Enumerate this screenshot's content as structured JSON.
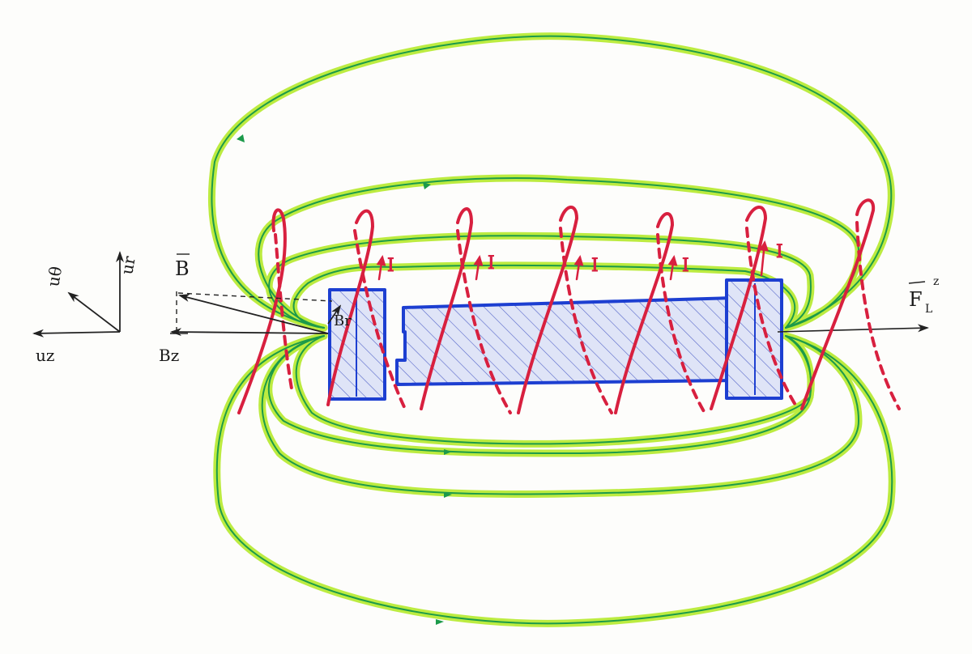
{
  "labels": {
    "u_theta": "uθ",
    "u_r": "ur",
    "u_z": "uz",
    "B": "B",
    "B_r": "Br",
    "B_z": "Bz",
    "F_z": "F",
    "F_sub": "L",
    "F_sup": "z",
    "current": "I"
  },
  "colors": {
    "field_line_glow": "#b5ea2c",
    "field_line_core": "#1c9a4a",
    "coil": "#d8203f",
    "magnet_outline": "#1d3fd1",
    "magnet_fill": "#dfe4f7",
    "hatch": "#5565c9",
    "ink": "#222222"
  },
  "coil_turns": 7
}
